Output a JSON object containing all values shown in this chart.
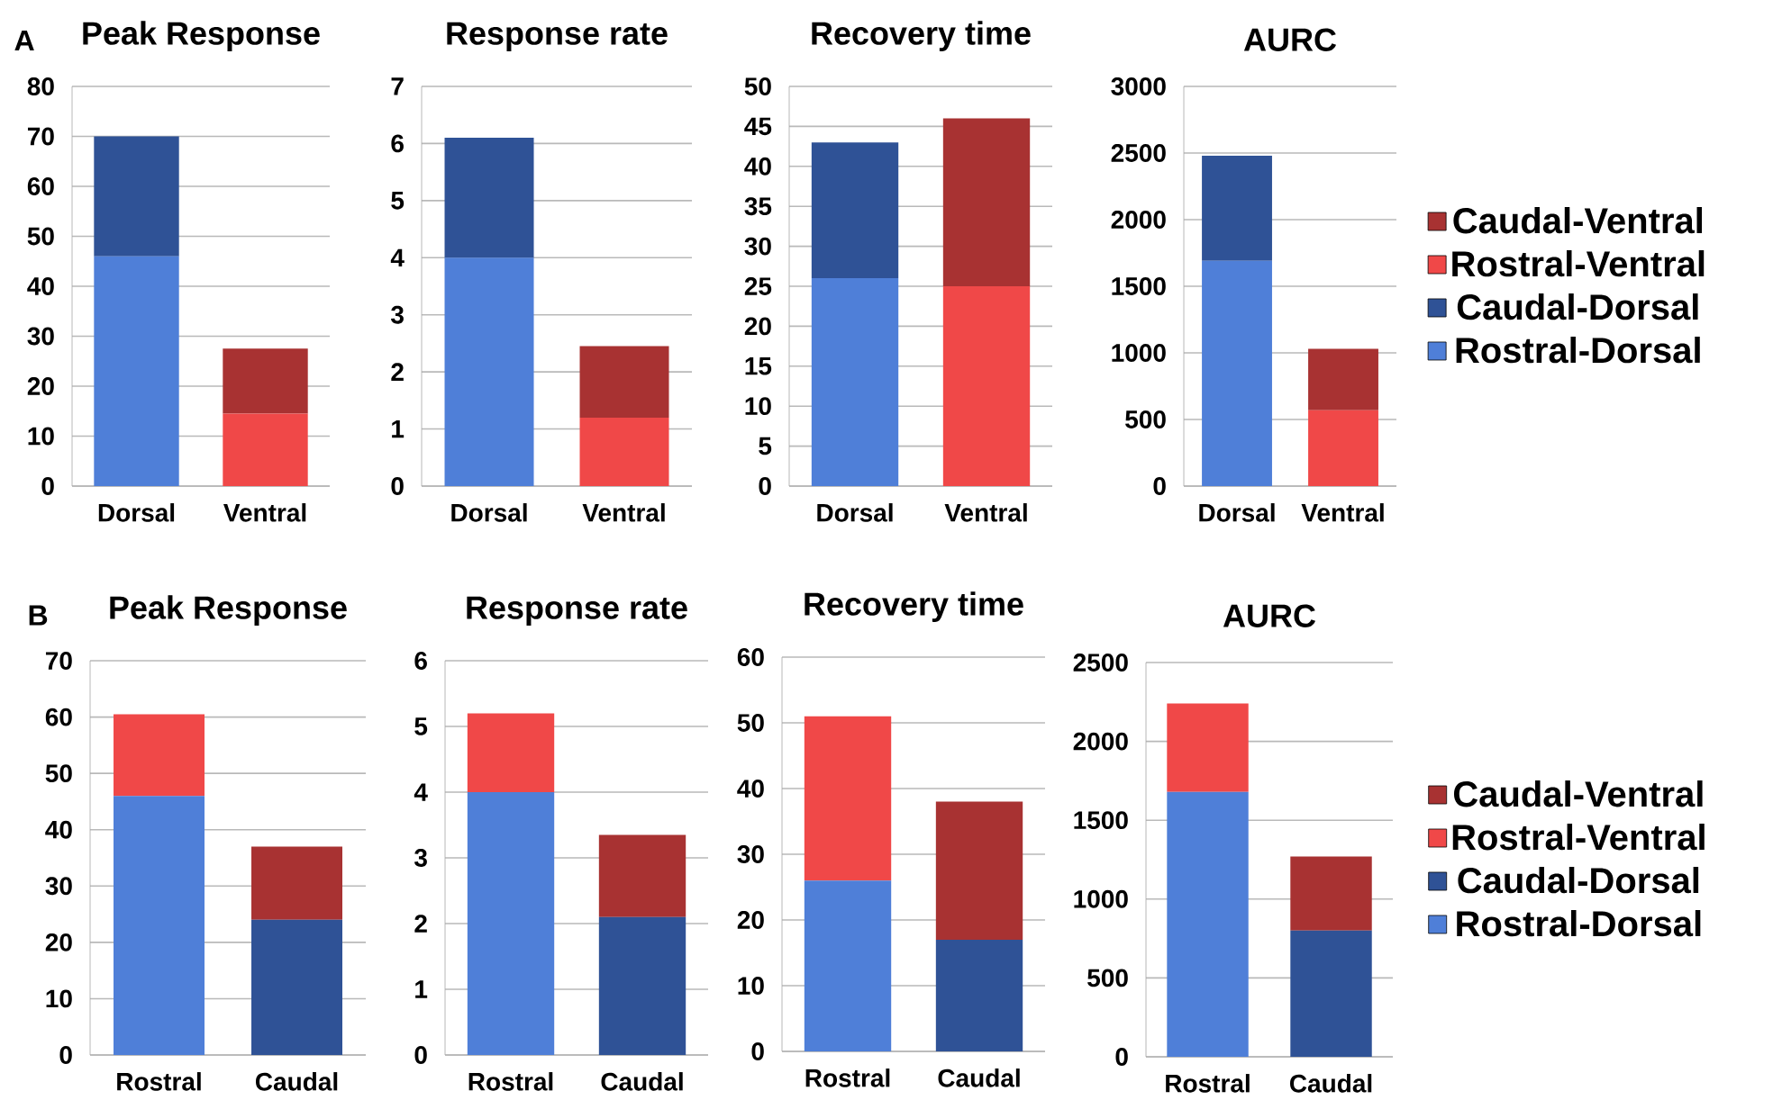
{
  "chart_data": [
    {
      "type": "bar",
      "stacked": true,
      "title": "Peak Response",
      "annotations": [
        "A"
      ],
      "categories": [
        "Dorsal",
        "Ventral"
      ],
      "ylim": [
        0,
        80
      ],
      "yticks": [
        0,
        10,
        20,
        30,
        40,
        50,
        60,
        70,
        80
      ],
      "grid": "y",
      "series": [
        {
          "color": "#4f7fd8",
          "values": [
            46,
            null
          ]
        },
        {
          "color": "#2f5296",
          "values": [
            24,
            null
          ]
        },
        {
          "color": "#f04848",
          "values": [
            null,
            14.5
          ]
        },
        {
          "color": "#a83232",
          "values": [
            null,
            13
          ]
        }
      ]
    },
    {
      "type": "bar",
      "stacked": true,
      "title": "Response rate",
      "categories": [
        "Dorsal",
        "Ventral"
      ],
      "ylim": [
        0,
        7
      ],
      "yticks": [
        0,
        1,
        2,
        3,
        4,
        5,
        6,
        7
      ],
      "grid": "y",
      "series": [
        {
          "color": "#4f7fd8",
          "values": [
            4.0,
            null
          ]
        },
        {
          "color": "#2f5296",
          "values": [
            2.1,
            null
          ]
        },
        {
          "color": "#f04848",
          "values": [
            null,
            1.2
          ]
        },
        {
          "color": "#a83232",
          "values": [
            null,
            1.25
          ]
        }
      ]
    },
    {
      "type": "bar",
      "stacked": true,
      "title": "Recovery time",
      "categories": [
        "Dorsal",
        "Ventral"
      ],
      "ylim": [
        0,
        50
      ],
      "yticks": [
        0,
        5,
        10,
        15,
        20,
        25,
        30,
        35,
        40,
        45,
        50
      ],
      "grid": "y",
      "series": [
        {
          "color": "#4f7fd8",
          "values": [
            26,
            null
          ]
        },
        {
          "color": "#2f5296",
          "values": [
            17,
            null
          ]
        },
        {
          "color": "#f04848",
          "values": [
            null,
            25
          ]
        },
        {
          "color": "#a83232",
          "values": [
            null,
            21
          ]
        }
      ]
    },
    {
      "type": "bar",
      "stacked": true,
      "title": "AURC",
      "categories": [
        "Dorsal",
        "Ventral"
      ],
      "ylim": [
        0,
        3000
      ],
      "yticks": [
        0,
        500,
        1000,
        1500,
        2000,
        2500,
        3000
      ],
      "grid": "y",
      "legend": "right",
      "series": [
        {
          "name": "Rostral-Dorsal",
          "color": "#4f7fd8",
          "values": [
            1690,
            null
          ]
        },
        {
          "name": "Caudal-Dorsal",
          "color": "#2f5296",
          "values": [
            790,
            null
          ]
        },
        {
          "name": "Rostral-Ventral",
          "color": "#f04848",
          "values": [
            null,
            570
          ]
        },
        {
          "name": "Caudal-Ventral",
          "color": "#a83232",
          "values": [
            null,
            460
          ]
        }
      ]
    },
    {
      "type": "bar",
      "stacked": true,
      "title": "Peak Response",
      "annotations": [
        "B"
      ],
      "categories": [
        "Rostral",
        "Caudal"
      ],
      "ylim": [
        0,
        70
      ],
      "yticks": [
        0,
        10,
        20,
        30,
        40,
        50,
        60,
        70
      ],
      "grid": "y",
      "series": [
        {
          "color": "#4f7fd8",
          "values": [
            46,
            null
          ]
        },
        {
          "color": "#2f5296",
          "values": [
            null,
            24
          ]
        },
        {
          "color": "#f04848",
          "values": [
            14.5,
            null
          ]
        },
        {
          "color": "#a83232",
          "values": [
            null,
            13
          ]
        }
      ]
    },
    {
      "type": "bar",
      "stacked": true,
      "title": "Response rate",
      "categories": [
        "Rostral",
        "Caudal"
      ],
      "ylim": [
        0,
        6
      ],
      "yticks": [
        0,
        1,
        2,
        3,
        4,
        5,
        6
      ],
      "grid": "y",
      "series": [
        {
          "color": "#4f7fd8",
          "values": [
            4.0,
            null
          ]
        },
        {
          "color": "#2f5296",
          "values": [
            null,
            2.1
          ]
        },
        {
          "color": "#f04848",
          "values": [
            1.2,
            null
          ]
        },
        {
          "color": "#a83232",
          "values": [
            null,
            1.25
          ]
        }
      ]
    },
    {
      "type": "bar",
      "stacked": true,
      "title": "Recovery time",
      "categories": [
        "Rostral",
        "Caudal"
      ],
      "ylim": [
        0,
        60
      ],
      "yticks": [
        0,
        10,
        20,
        30,
        40,
        50,
        60
      ],
      "grid": "y",
      "series": [
        {
          "color": "#4f7fd8",
          "values": [
            26,
            null
          ]
        },
        {
          "color": "#2f5296",
          "values": [
            null,
            17
          ]
        },
        {
          "color": "#f04848",
          "values": [
            25,
            null
          ]
        },
        {
          "color": "#a83232",
          "values": [
            null,
            21
          ]
        }
      ]
    },
    {
      "type": "bar",
      "stacked": true,
      "title": "AURC",
      "categories": [
        "Rostral",
        "Caudal"
      ],
      "ylim": [
        0,
        2500
      ],
      "yticks": [
        0,
        500,
        1000,
        1500,
        2000,
        2500
      ],
      "grid": "y",
      "legend": "right",
      "series": [
        {
          "name": "Rostral-Dorsal",
          "color": "#4f7fd8",
          "values": [
            1680,
            null
          ]
        },
        {
          "name": "Caudal-Dorsal",
          "color": "#2f5296",
          "values": [
            null,
            800
          ]
        },
        {
          "name": "Rostral-Ventral",
          "color": "#f04848",
          "values": [
            560,
            null
          ]
        },
        {
          "name": "Caudal-Ventral",
          "color": "#a83232",
          "values": [
            null,
            470
          ]
        }
      ]
    }
  ]
}
